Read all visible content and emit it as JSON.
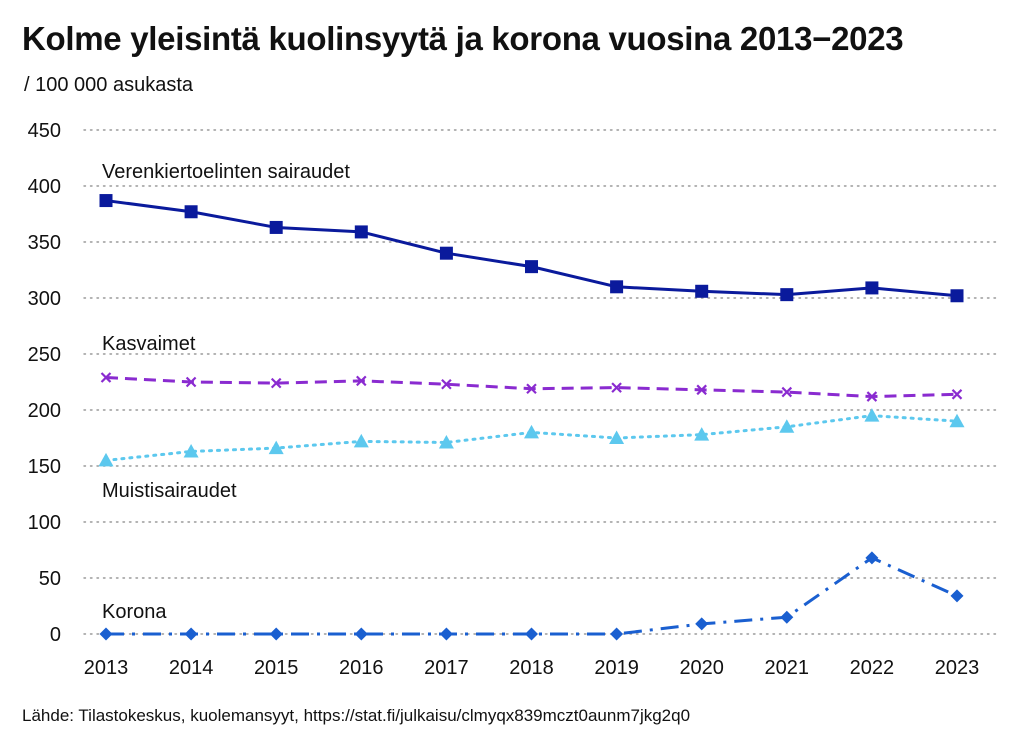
{
  "title": "Kolme yleisintä kuolinsyytä ja korona vuosina 2013−2023",
  "unit_label": "/ 100 000 asukasta",
  "source": "Lähde: Tilastokeskus, kuolemansyyt, https://stat.fi/julkaisu/clmyqx839mczt0aunm7jkg2q0",
  "chart_data": {
    "type": "line",
    "title": "Kolme yleisintä kuolinsyytä ja korona vuosina 2013−2023",
    "ylabel": "/ 100 000 asukasta",
    "xlabel": "",
    "x": [
      "2013",
      "2014",
      "2015",
      "2016",
      "2017",
      "2018",
      "2019",
      "2020",
      "2021",
      "2022",
      "2023"
    ],
    "ylim": [
      0,
      450
    ],
    "yticks": [
      0,
      50,
      100,
      150,
      200,
      250,
      300,
      350,
      400,
      450
    ],
    "grid": "horizontal dotted",
    "series": [
      {
        "name": "Verenkiertoelinten sairaudet",
        "values": [
          387,
          377,
          363,
          359,
          340,
          328,
          310,
          306,
          303,
          309,
          302
        ],
        "color": "#0a1a9c",
        "marker": "square",
        "line": "solid"
      },
      {
        "name": "Kasvaimet",
        "values": [
          229,
          225,
          224,
          226,
          223,
          219,
          220,
          218,
          216,
          212,
          214
        ],
        "color": "#8a2bd0",
        "marker": "x",
        "line": "dashed"
      },
      {
        "name": "Muistisairaudet",
        "values": [
          155,
          163,
          166,
          172,
          171,
          180,
          175,
          178,
          185,
          195,
          190
        ],
        "color": "#5cc8ee",
        "marker": "triangle",
        "line": "dotted"
      },
      {
        "name": "Korona",
        "values": [
          0,
          0,
          0,
          0,
          0,
          0,
          0,
          9,
          15,
          68,
          34
        ],
        "color": "#1a5fd0",
        "marker": "diamond",
        "line": "dashdot"
      }
    ]
  }
}
